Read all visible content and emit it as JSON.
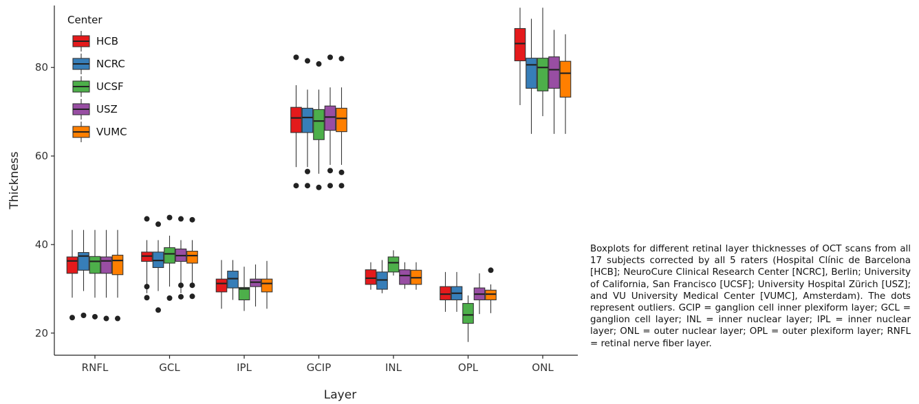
{
  "chart_data": {
    "type": "boxplot",
    "xlabel": "Layer",
    "ylabel": "Thickness",
    "categories": [
      "RNFL",
      "GCL",
      "IPL",
      "GCIP",
      "INL",
      "OPL",
      "ONL"
    ],
    "yticks": [
      20,
      40,
      60,
      80
    ],
    "ylim": [
      15,
      94
    ],
    "grid": false,
    "legend": {
      "title": "Center",
      "placement": "top-left",
      "entries": [
        "HCB",
        "NCRC",
        "UCSF",
        "USZ",
        "VUMC"
      ]
    },
    "series": [
      {
        "name": "HCB",
        "color": "#e41a1c",
        "boxes": [
          {
            "category": "RNFL",
            "whisker_low": 28.0,
            "q1": 33.5,
            "median": 36.3,
            "q3": 37.2,
            "whisker_high": 43.3,
            "outliers": [
              23.5
            ]
          },
          {
            "category": "GCL",
            "whisker_low": 29.0,
            "q1": 36.2,
            "median": 37.4,
            "q3": 38.3,
            "whisker_high": 41.0,
            "outliers": [
              45.8,
              30.5,
              28.0
            ]
          },
          {
            "category": "IPL",
            "whisker_low": 25.5,
            "q1": 29.3,
            "median": 31.2,
            "q3": 32.2,
            "whisker_high": 36.5,
            "outliers": []
          },
          {
            "category": "GCIP",
            "whisker_low": 57.5,
            "q1": 65.3,
            "median": 68.6,
            "q3": 71.0,
            "whisker_high": 76.0,
            "outliers": [
              82.3,
              53.3
            ]
          },
          {
            "category": "INL",
            "whisker_low": 29.8,
            "q1": 31.0,
            "median": 32.4,
            "q3": 34.3,
            "whisker_high": 36.0,
            "outliers": []
          },
          {
            "category": "OPL",
            "whisker_low": 24.8,
            "q1": 27.5,
            "median": 28.8,
            "q3": 30.5,
            "whisker_high": 33.8,
            "outliers": []
          },
          {
            "category": "ONL",
            "whisker_low": 71.5,
            "q1": 81.5,
            "median": 85.4,
            "q3": 88.8,
            "whisker_high": 93.5,
            "outliers": []
          }
        ]
      },
      {
        "name": "NCRC",
        "color": "#377eb8",
        "boxes": [
          {
            "category": "RNFL",
            "whisker_low": 29.5,
            "q1": 34.2,
            "median": 37.4,
            "q3": 38.2,
            "whisker_high": 43.3,
            "outliers": [
              24.0
            ]
          },
          {
            "category": "GCL",
            "whisker_low": 29.5,
            "q1": 34.8,
            "median": 36.4,
            "q3": 38.3,
            "whisker_high": 41.0,
            "outliers": [
              44.6,
              25.2
            ]
          },
          {
            "category": "IPL",
            "whisker_low": 27.5,
            "q1": 30.2,
            "median": 32.3,
            "q3": 34.0,
            "whisker_high": 36.5,
            "outliers": []
          },
          {
            "category": "GCIP",
            "whisker_low": 57.5,
            "q1": 65.3,
            "median": 68.7,
            "q3": 70.8,
            "whisker_high": 75.0,
            "outliers": [
              81.5,
              56.5,
              53.3
            ]
          },
          {
            "category": "INL",
            "whisker_low": 29.0,
            "q1": 29.9,
            "median": 32.0,
            "q3": 33.8,
            "whisker_high": 36.5,
            "outliers": []
          },
          {
            "category": "OPL",
            "whisker_low": 24.8,
            "q1": 27.5,
            "median": 29.0,
            "q3": 30.5,
            "whisker_high": 33.8,
            "outliers": []
          },
          {
            "category": "ONL",
            "whisker_low": 65.0,
            "q1": 75.3,
            "median": 80.6,
            "q3": 82.1,
            "whisker_high": 91.0,
            "outliers": []
          }
        ]
      },
      {
        "name": "UCSF",
        "color": "#4daf4a",
        "boxes": [
          {
            "category": "RNFL",
            "whisker_low": 28.0,
            "q1": 33.5,
            "median": 36.2,
            "q3": 37.3,
            "whisker_high": 43.3,
            "outliers": [
              23.7
            ]
          },
          {
            "category": "GCL",
            "whisker_low": 30.5,
            "q1": 35.8,
            "median": 37.9,
            "q3": 39.3,
            "whisker_high": 42.0,
            "outliers": [
              46.1,
              27.9
            ]
          },
          {
            "category": "IPL",
            "whisker_low": 25.0,
            "q1": 27.5,
            "median": 30.0,
            "q3": 30.3,
            "whisker_high": 35.0,
            "outliers": []
          },
          {
            "category": "GCIP",
            "whisker_low": 56.0,
            "q1": 63.7,
            "median": 67.9,
            "q3": 70.5,
            "whisker_high": 75.0,
            "outliers": [
              80.8,
              52.9
            ]
          },
          {
            "category": "INL",
            "whisker_low": 33.0,
            "q1": 33.8,
            "median": 35.9,
            "q3": 37.2,
            "whisker_high": 38.7,
            "outliers": []
          },
          {
            "category": "OPL",
            "whisker_low": 18.0,
            "q1": 22.2,
            "median": 24.1,
            "q3": 26.7,
            "whisker_high": 28.5,
            "outliers": []
          },
          {
            "category": "ONL",
            "whisker_low": 69.0,
            "q1": 74.7,
            "median": 80.0,
            "q3": 82.1,
            "whisker_high": 93.5,
            "outliers": []
          }
        ]
      },
      {
        "name": "USZ",
        "color": "#984ea3",
        "boxes": [
          {
            "category": "RNFL",
            "whisker_low": 28.0,
            "q1": 33.5,
            "median": 36.3,
            "q3": 37.2,
            "whisker_high": 43.3,
            "outliers": [
              23.3
            ]
          },
          {
            "category": "GCL",
            "whisker_low": 29.0,
            "q1": 36.2,
            "median": 37.5,
            "q3": 39.0,
            "whisker_high": 41.0,
            "outliers": [
              45.8,
              30.8,
              28.2
            ]
          },
          {
            "category": "IPL",
            "whisker_low": 26.0,
            "q1": 30.5,
            "median": 31.5,
            "q3": 32.2,
            "whisker_high": 35.5,
            "outliers": []
          },
          {
            "category": "GCIP",
            "whisker_low": 58.0,
            "q1": 65.8,
            "median": 68.8,
            "q3": 71.3,
            "whisker_high": 75.5,
            "outliers": [
              82.3,
              56.7,
              53.3
            ]
          },
          {
            "category": "INL",
            "whisker_low": 30.0,
            "q1": 31.0,
            "median": 33.0,
            "q3": 34.3,
            "whisker_high": 36.0,
            "outliers": []
          },
          {
            "category": "OPL",
            "whisker_low": 24.3,
            "q1": 27.5,
            "median": 28.8,
            "q3": 30.2,
            "whisker_high": 33.5,
            "outliers": []
          },
          {
            "category": "ONL",
            "whisker_low": 65.0,
            "q1": 75.3,
            "median": 79.5,
            "q3": 82.4,
            "whisker_high": 88.5,
            "outliers": []
          }
        ]
      },
      {
        "name": "VUMC",
        "color": "#ff7f00",
        "boxes": [
          {
            "category": "RNFL",
            "whisker_low": 28.0,
            "q1": 33.2,
            "median": 36.4,
            "q3": 37.6,
            "whisker_high": 43.3,
            "outliers": [
              23.3
            ]
          },
          {
            "category": "GCL",
            "whisker_low": 30.5,
            "q1": 35.8,
            "median": 37.5,
            "q3": 38.5,
            "whisker_high": 41.0,
            "outliers": [
              45.6,
              30.8,
              28.3
            ]
          },
          {
            "category": "IPL",
            "whisker_low": 25.5,
            "q1": 29.3,
            "median": 31.2,
            "q3": 32.2,
            "whisker_high": 36.3,
            "outliers": []
          },
          {
            "category": "GCIP",
            "whisker_low": 58.0,
            "q1": 65.5,
            "median": 68.5,
            "q3": 70.8,
            "whisker_high": 75.5,
            "outliers": [
              82.0,
              56.3,
              53.3
            ]
          },
          {
            "category": "INL",
            "whisker_low": 29.8,
            "q1": 31.0,
            "median": 32.5,
            "q3": 34.2,
            "whisker_high": 36.0,
            "outliers": []
          },
          {
            "category": "OPL",
            "whisker_low": 24.5,
            "q1": 27.5,
            "median": 28.8,
            "q3": 29.7,
            "whisker_high": 31.0,
            "outliers": [
              34.2
            ]
          },
          {
            "category": "ONL",
            "whisker_low": 65.0,
            "q1": 73.3,
            "median": 78.7,
            "q3": 81.4,
            "whisker_high": 87.5,
            "outliers": []
          }
        ]
      }
    ]
  },
  "caption": "Boxplots for different retinal layer thicknesses of OCT scans from all 17 subjects corrected by all 5 raters (Hospital Clínic de Barcelona [HCB]; NeuroCure Clinical Research Center [NCRC], Berlin; University of California, San Francisco [UCSF]; University Hospital Zürich [USZ]; and VU University Medical Center [VUMC], Amsterdam). The dots represent outliers. GCIP = ganglion cell inner plexiform layer; GCL = ganglion cell layer; INL = inner nuclear layer; IPL = inner nuclear layer; ONL = outer nuclear layer; OPL = outer plexiform layer; RNFL = retinal nerve fiber layer."
}
